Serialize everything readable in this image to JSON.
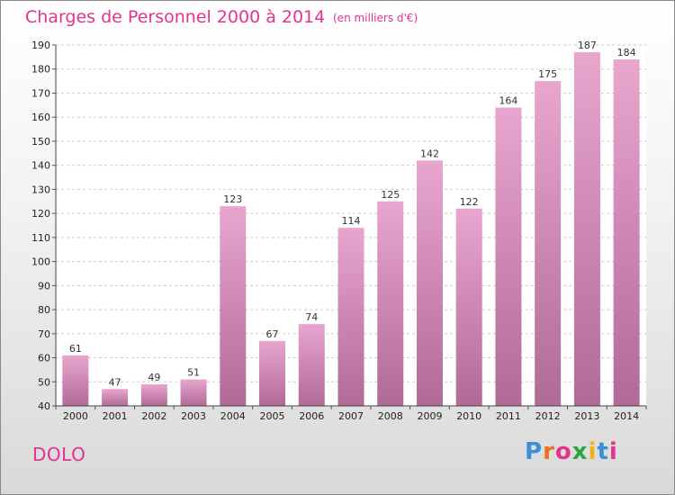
{
  "header": {
    "title": "Charges de Personnel 2000 à 2014",
    "unit": "(en milliers d'€)"
  },
  "footer": {
    "commune": "DOLO",
    "brand": "Proxiti",
    "brand_colors": [
      "#3a8fd6",
      "#e8731e",
      "#e2338f",
      "#2aa63e",
      "#f0b21a",
      "#3a8fd6",
      "#e2338f"
    ]
  },
  "colors": {
    "bar_top": "#e8a6cf",
    "bar_bottom": "#b06a96",
    "grid": "#cccccc",
    "plot_background": "#ffffff"
  },
  "chart_data": {
    "type": "bar",
    "title": "Charges de Personnel 2000 à 2014",
    "subtitle": "(en milliers d'€)",
    "categories": [
      "2000",
      "2001",
      "2002",
      "2003",
      "2004",
      "2005",
      "2006",
      "2007",
      "2008",
      "2009",
      "2010",
      "2011",
      "2012",
      "2013",
      "2014"
    ],
    "values": [
      61,
      47,
      49,
      51,
      123,
      67,
      74,
      114,
      125,
      142,
      122,
      164,
      175,
      187,
      184
    ],
    "ylim": [
      40,
      190
    ],
    "yticks": [
      40,
      50,
      60,
      70,
      80,
      90,
      100,
      110,
      120,
      130,
      140,
      150,
      160,
      170,
      180,
      190
    ],
    "grid": true,
    "data_labels": true
  }
}
